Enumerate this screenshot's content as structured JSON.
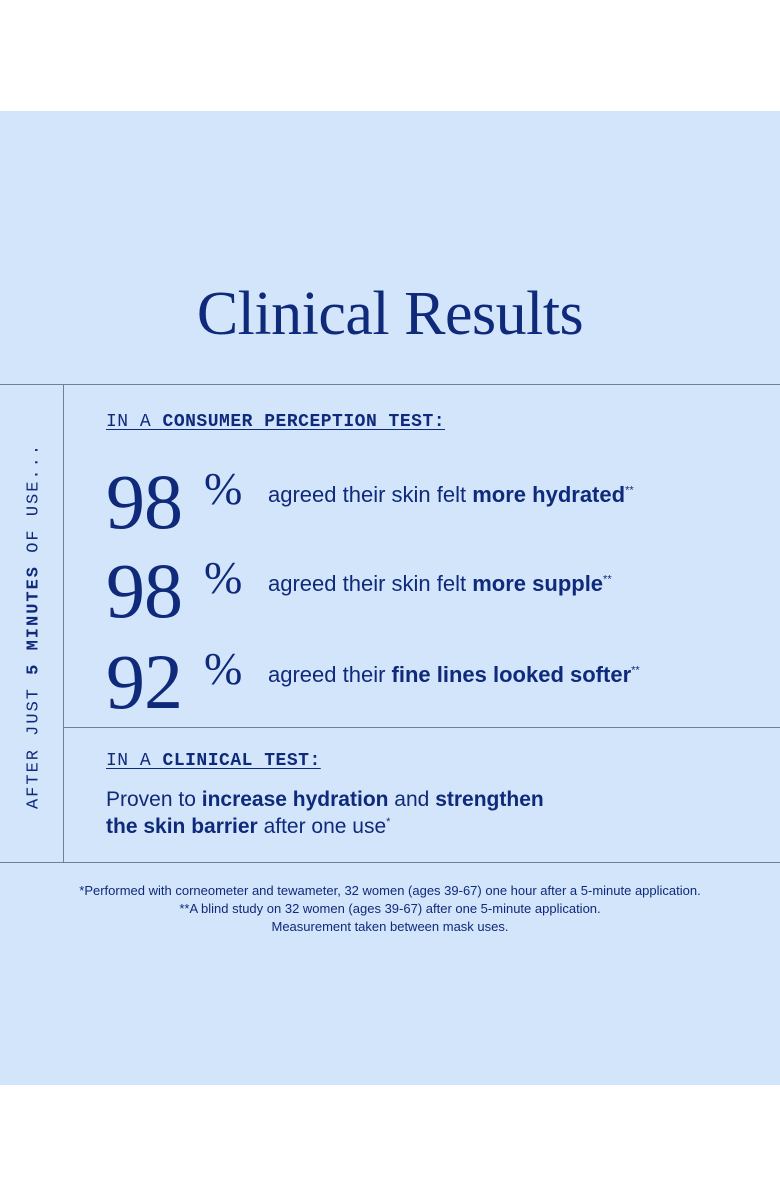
{
  "title": "Clinical Results",
  "side_label": {
    "before": "AFTER JUST ",
    "bold": "5 MINUTES",
    "after": " OF USE..."
  },
  "consumer_heading": {
    "prefix": "IN A ",
    "bold": "CONSUMER PERCEPTION TEST:"
  },
  "stats": [
    {
      "number": "98",
      "percent": "%",
      "text": "agreed their skin felt ",
      "bold": "more hydrated",
      "mark": "**"
    },
    {
      "number": "98",
      "percent": "%",
      "text": "agreed their skin felt ",
      "bold": "more supple",
      "mark": "**"
    },
    {
      "number": "92",
      "percent": "%",
      "text": "agreed their ",
      "bold": "fine lines looked softer",
      "mark": "**"
    }
  ],
  "clinical_heading": {
    "prefix": "IN A ",
    "bold": "CLINICAL TEST:"
  },
  "clinical_text": {
    "part1": "Proven to ",
    "bold1": "increase hydration",
    "part2": " and ",
    "bold2": "strengthen",
    "bold3": "the skin barrier",
    "part3": " after one use",
    "mark": "*"
  },
  "footnotes": [
    "*Performed with corneometer and tewameter, 32 women (ages 39-67) one hour after a 5-minute application.",
    "**A blind study on 32 women (ages 39-67) after one 5-minute application.",
    "Measurement taken between mask uses."
  ],
  "colors": {
    "panel_background": "#d3e5fb",
    "text": "#0f2a7a",
    "rule": "#6d7f9a"
  }
}
